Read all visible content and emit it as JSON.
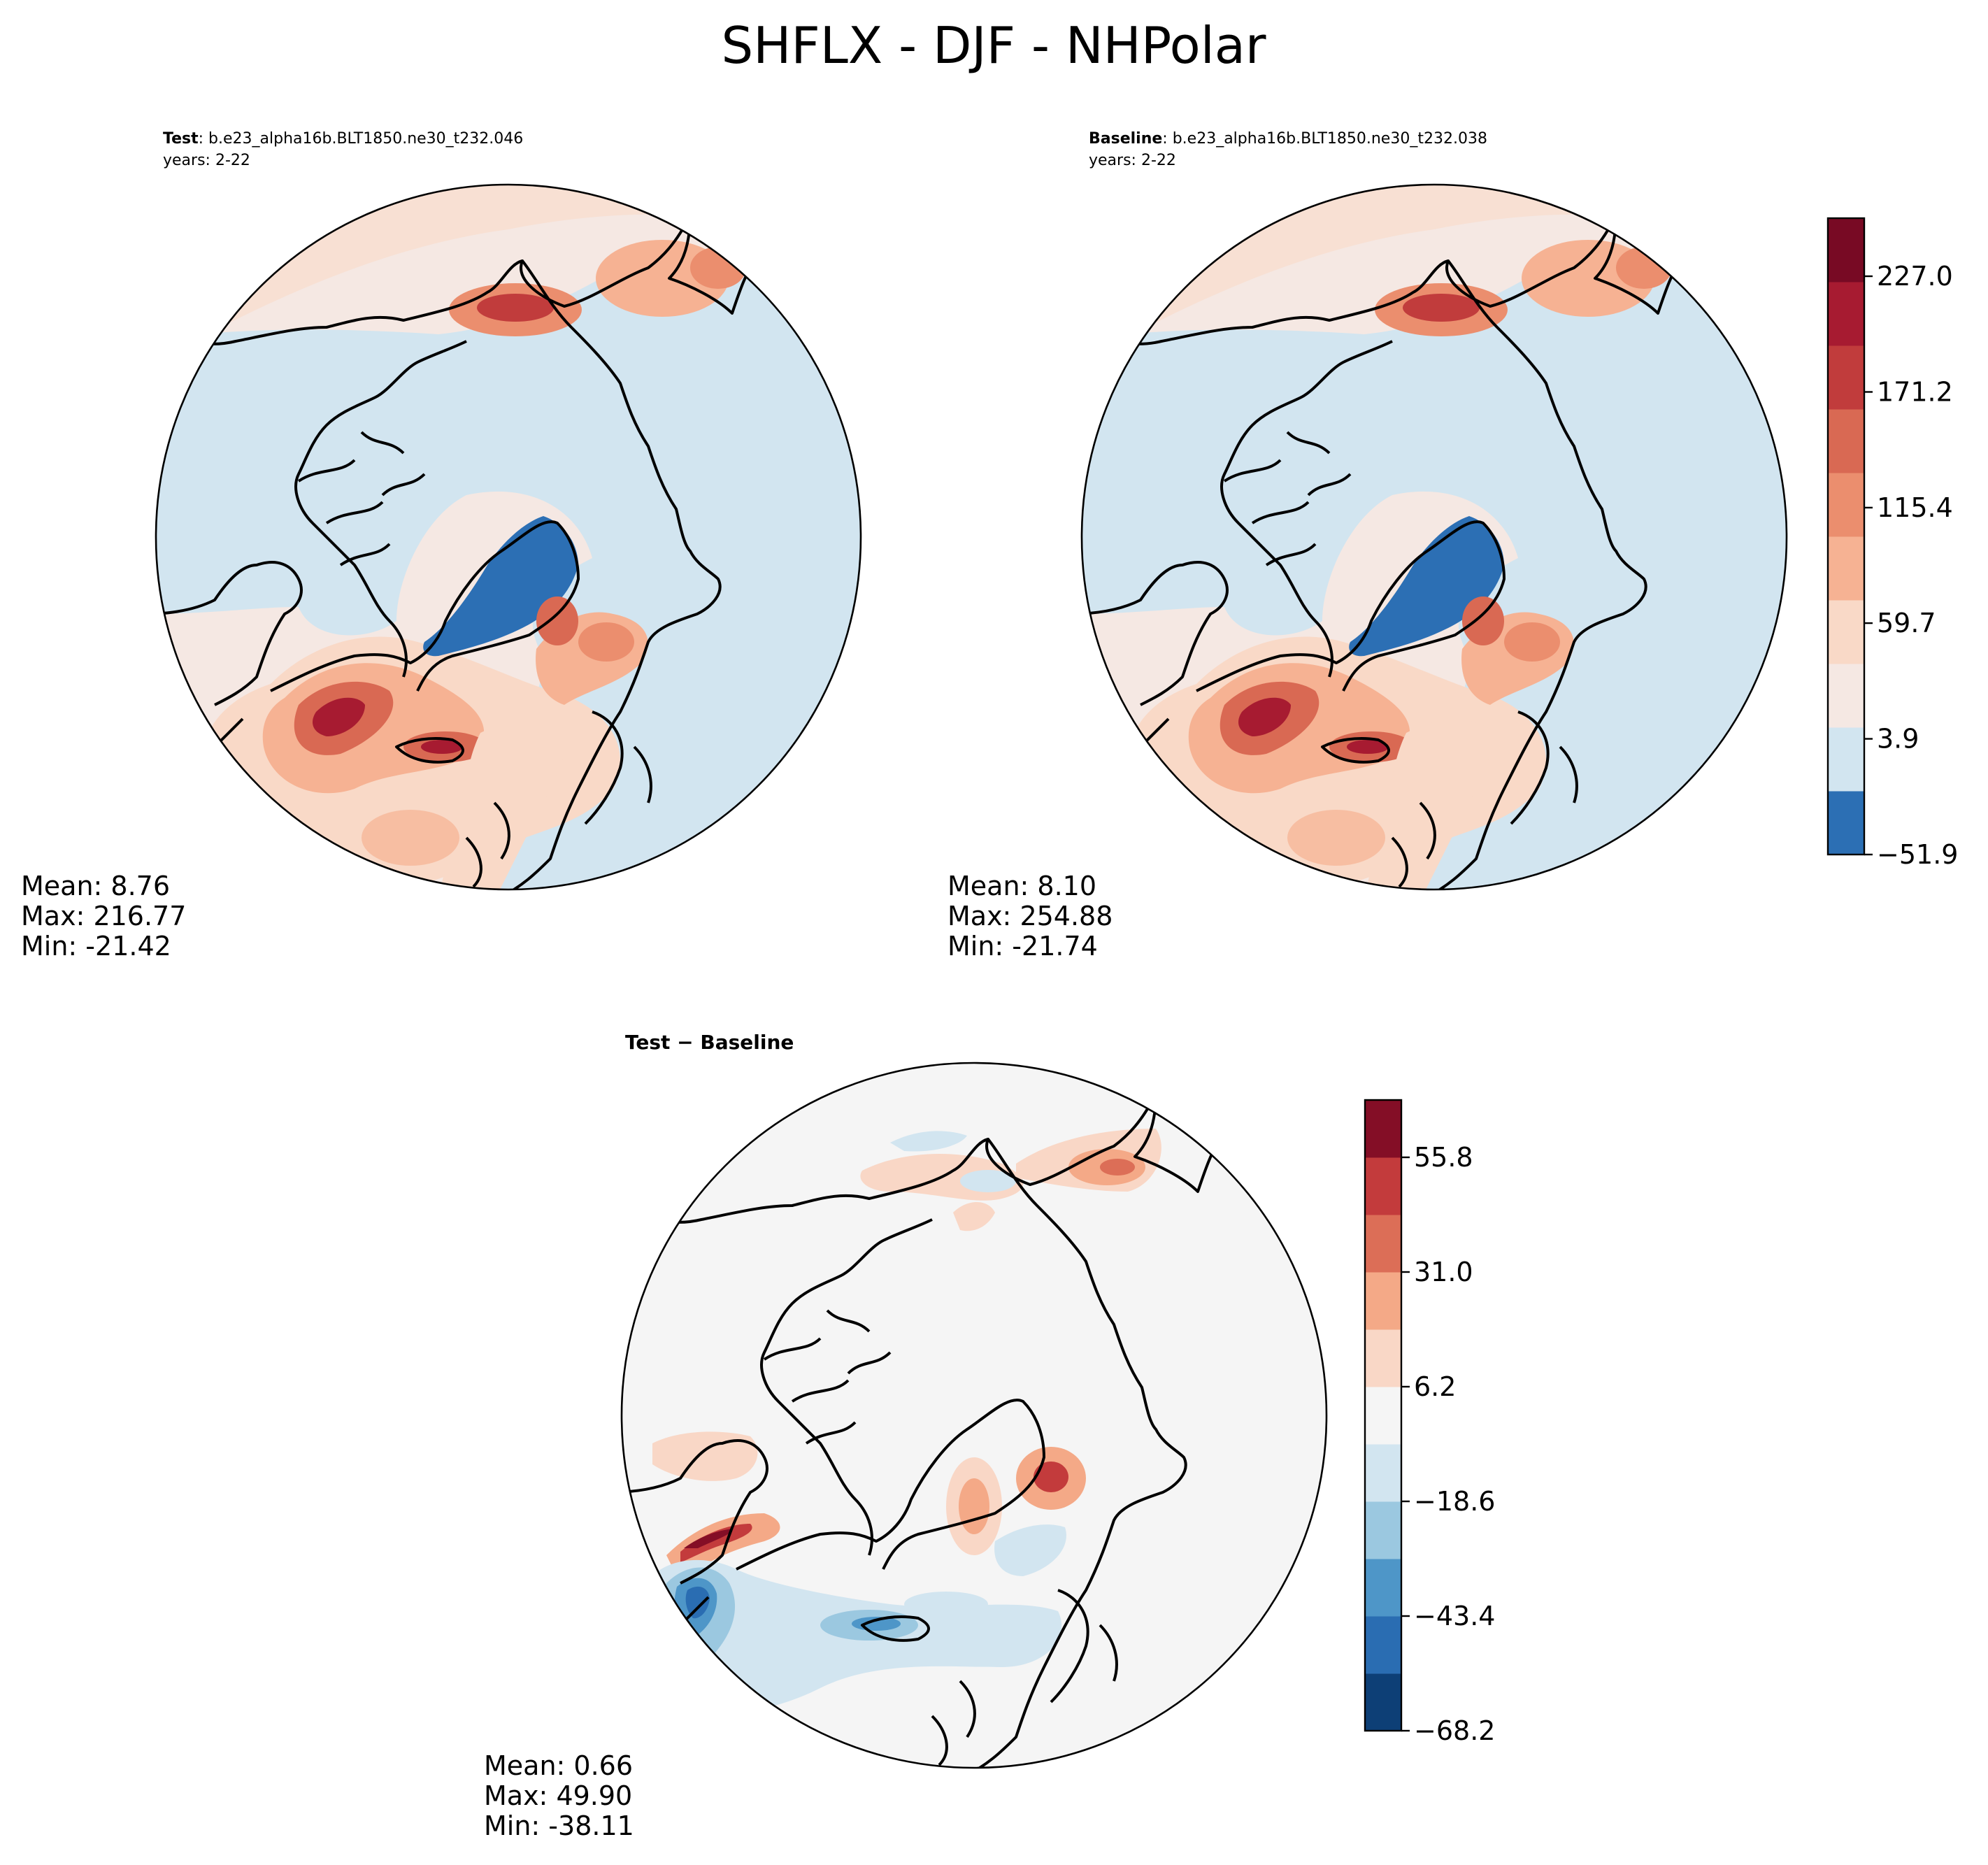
{
  "suptitle": "SHFLX - DJF - NHPolar",
  "colors": {
    "rdbu_main": [
      "#2c6fb4",
      "#d2e5f0",
      "#f5e8e3",
      "#f9d9c7",
      "#f6b293",
      "#eb8e6e",
      "#d96953",
      "#c13c3c",
      "#a71b31",
      "#780a24"
    ],
    "rdbu_diff": [
      "#0d3f76",
      "#2a6db2",
      "#4e96c8",
      "#9bc8e0",
      "#d2e5f0",
      "#f5f5f5",
      "#f9d7c6",
      "#f4a987",
      "#dc6e57",
      "#c33b3c",
      "#840e26"
    ]
  },
  "chart_data": [
    {
      "type": "heatmap",
      "name": "test",
      "title_bold": "Test",
      "title_rest": ": b.e23_alpha16b.BLT1850.ne30_t232.046",
      "years": "years: 2-22",
      "stats": {
        "mean": "Mean:  8.76",
        "max": "Max: 216.77",
        "min": "Min: -21.42"
      }
    },
    {
      "type": "heatmap",
      "name": "baseline",
      "title_bold": "Baseline",
      "title_rest": ": b.e23_alpha16b.BLT1850.ne30_t232.038",
      "years": "years: 2-22",
      "stats": {
        "mean": "Mean:  8.10",
        "max": "Max: 254.88",
        "min": "Min: -21.74"
      },
      "colorbar_ticks": [
        "227.0",
        "171.2",
        "115.4",
        "59.7",
        "3.9",
        "−51.9"
      ],
      "colorbar_tick_values": [
        227.0,
        171.2,
        115.4,
        59.7,
        3.9,
        -51.9
      ]
    },
    {
      "type": "heatmap",
      "name": "difference",
      "title_bold": "Test − Baseline",
      "stats": {
        "mean": "Mean:  0.66",
        "max": "Max: 49.90",
        "min": "Min: -38.11"
      },
      "colorbar_ticks": [
        "55.8",
        "31.0",
        "6.2",
        "−18.6",
        "−43.4",
        "−68.2"
      ],
      "colorbar_tick_values": [
        55.8,
        31.0,
        6.2,
        -18.6,
        -43.4,
        -68.2
      ]
    }
  ]
}
